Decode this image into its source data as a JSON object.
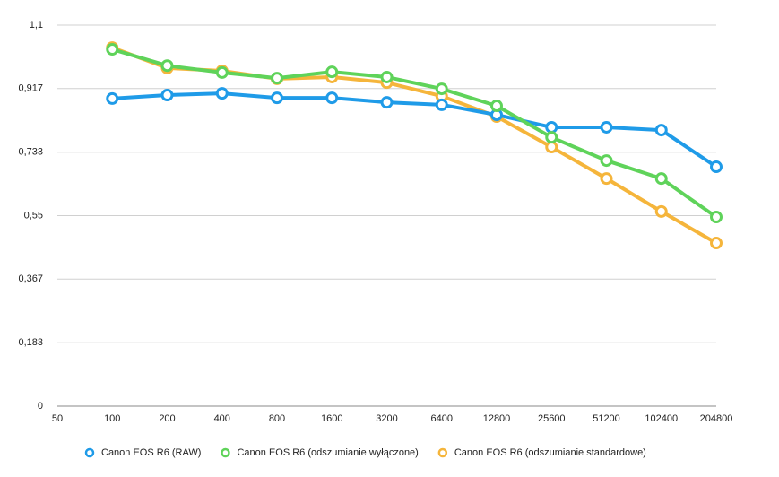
{
  "chart_data": {
    "type": "line",
    "categories": [
      "50",
      "100",
      "200",
      "400",
      "800",
      "1600",
      "3200",
      "6400",
      "12800",
      "25600",
      "51200",
      "102400",
      "204800"
    ],
    "series": [
      {
        "name": "Canon EOS R6 (odszumianie standardowe)",
        "color": "#f5b53b",
        "values": [
          null,
          1.035,
          0.976,
          0.968,
          0.945,
          0.95,
          0.934,
          0.895,
          0.836,
          0.748,
          0.657,
          0.562,
          0.471
        ]
      },
      {
        "name": "Canon EOS R6 (RAW)",
        "color": "#1f9be8",
        "values": [
          null,
          0.888,
          0.898,
          0.903,
          0.89,
          0.89,
          0.877,
          0.87,
          0.841,
          0.805,
          0.805,
          0.797,
          0.691
        ]
      },
      {
        "name": "Canon EOS R6 (odszumianie wyłączone)",
        "color": "#5fd35a",
        "values": [
          null,
          1.03,
          0.983,
          0.963,
          0.947,
          0.965,
          0.95,
          0.916,
          0.867,
          0.776,
          0.709,
          0.657,
          0.546
        ]
      }
    ],
    "legend_order": [
      1,
      2,
      0
    ],
    "ylim": [
      0,
      1.1
    ],
    "yticks": [
      0,
      {
        "value": 0.183,
        "label": "0,183"
      },
      {
        "value": 0.367,
        "label": "0,367"
      },
      {
        "value": 0.55,
        "label": "0,55"
      },
      {
        "value": 0.733,
        "label": "0,733"
      },
      {
        "value": 0.917,
        "label": "0,917"
      },
      {
        "value": 1.1,
        "label": "1,1"
      }
    ],
    "grid": true,
    "legend": "bottom"
  }
}
